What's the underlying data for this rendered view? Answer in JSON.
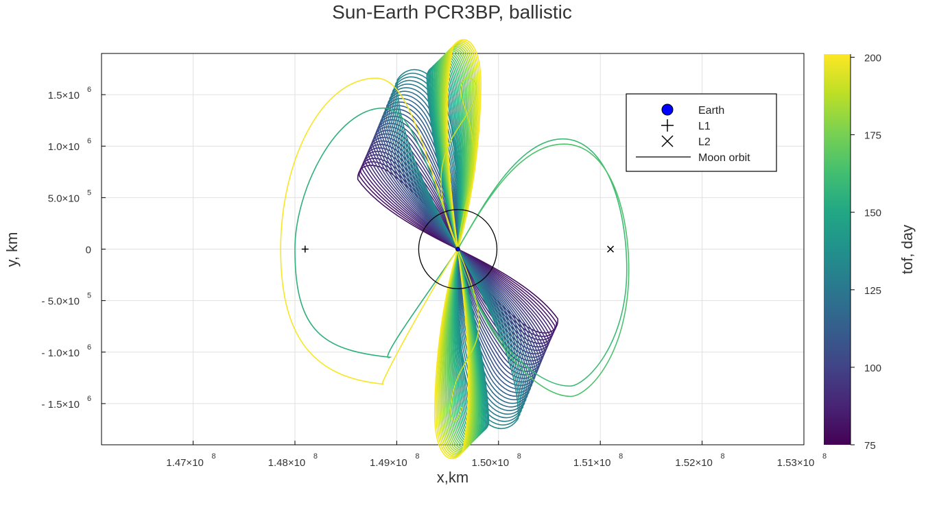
{
  "chart_data": {
    "type": "line",
    "title": "Sun-Earth PCR3BP, ballistic",
    "xlabel": "x,km",
    "ylabel": "y, km",
    "xlim": [
      146100000,
      153000000
    ],
    "ylim": [
      -1900000,
      1900000
    ],
    "x_ticks": [
      {
        "value": 147000000,
        "mant": "1.47×10",
        "exp": "8"
      },
      {
        "value": 148000000,
        "mant": "1.48×10",
        "exp": "8"
      },
      {
        "value": 149000000,
        "mant": "1.49×10",
        "exp": "8"
      },
      {
        "value": 150000000,
        "mant": "1.50×10",
        "exp": "8"
      },
      {
        "value": 151000000,
        "mant": "1.51×10",
        "exp": "8"
      },
      {
        "value": 152000000,
        "mant": "1.52×10",
        "exp": "8"
      },
      {
        "value": 153000000,
        "mant": "1.53×10",
        "exp": "8"
      }
    ],
    "y_ticks": [
      {
        "value": 1500000,
        "mant": "1.5×10",
        "exp": "6"
      },
      {
        "value": 1000000,
        "mant": "1.0×10",
        "exp": "6"
      },
      {
        "value": 500000,
        "mant": "5.0×10",
        "exp": "5"
      },
      {
        "value": 0,
        "mant": "0",
        "exp": ""
      },
      {
        "value": -500000,
        "mant": "- 5.0×10",
        "exp": "5"
      },
      {
        "value": -1000000,
        "mant": "- 1.0×10",
        "exp": "6"
      },
      {
        "value": -1500000,
        "mant": "- 1.5×10",
        "exp": "6"
      }
    ],
    "grid": true,
    "legend_position": "top-right",
    "legend": [
      {
        "label": "Earth",
        "marker": "filled-circle",
        "color": "#0000ff"
      },
      {
        "label": "L1",
        "marker": "plus",
        "color": "#000000"
      },
      {
        "label": "L2",
        "marker": "cross",
        "color": "#000000"
      },
      {
        "label": "Moon orbit",
        "marker": "line",
        "color": "#000000"
      }
    ],
    "points": {
      "earth": {
        "x": 149600000,
        "y": 0
      },
      "L1": {
        "x": 148100000,
        "y": 0
      },
      "L2": {
        "x": 151100000,
        "y": 0
      }
    },
    "moon_orbit_radius_km": 384400,
    "colorbar": {
      "label": "tof, day",
      "min": 75,
      "max": 201,
      "ticks": [
        75,
        100,
        125,
        150,
        175,
        200
      ],
      "colormap": "viridis"
    },
    "trajectory_families": [
      {
        "tof_days": [
          80,
          134
        ],
        "count": 28,
        "apex_x": 148680000,
        "apex_y": 750000,
        "lateral_extent_km": 1000000
      },
      {
        "tof_days": [
          136,
          200
        ],
        "count": 24,
        "apex_x": 149360000,
        "apex_y": 1700000,
        "lateral_extent_km": 800000
      }
    ],
    "wide_loops": [
      {
        "tof_days": 155,
        "side": "L1",
        "x_range": [
          148000000,
          149600000
        ],
        "y_range": [
          -1050000,
          1370000
        ]
      },
      {
        "tof_days": 200,
        "side": "L1",
        "x_range": [
          147860000,
          149600000
        ],
        "y_range": [
          -1310000,
          1660000
        ]
      },
      {
        "tof_days": 160,
        "side": "L2",
        "x_range": [
          149600000,
          151260000
        ],
        "y_range": [
          -1330000,
          1070000
        ]
      },
      {
        "tof_days": 165,
        "side": "L2",
        "x_range": [
          149600000,
          151280000
        ],
        "y_range": [
          -1430000,
          1020000
        ]
      },
      {
        "tof_days": 190,
        "side": "figure-eight",
        "x_range": [
          149400000,
          149750000
        ],
        "y_range": [
          -1700000,
          1730000
        ]
      }
    ],
    "colors": {
      "axis": "#000000",
      "grid": "#e0e0e0",
      "text": "#333333"
    }
  }
}
